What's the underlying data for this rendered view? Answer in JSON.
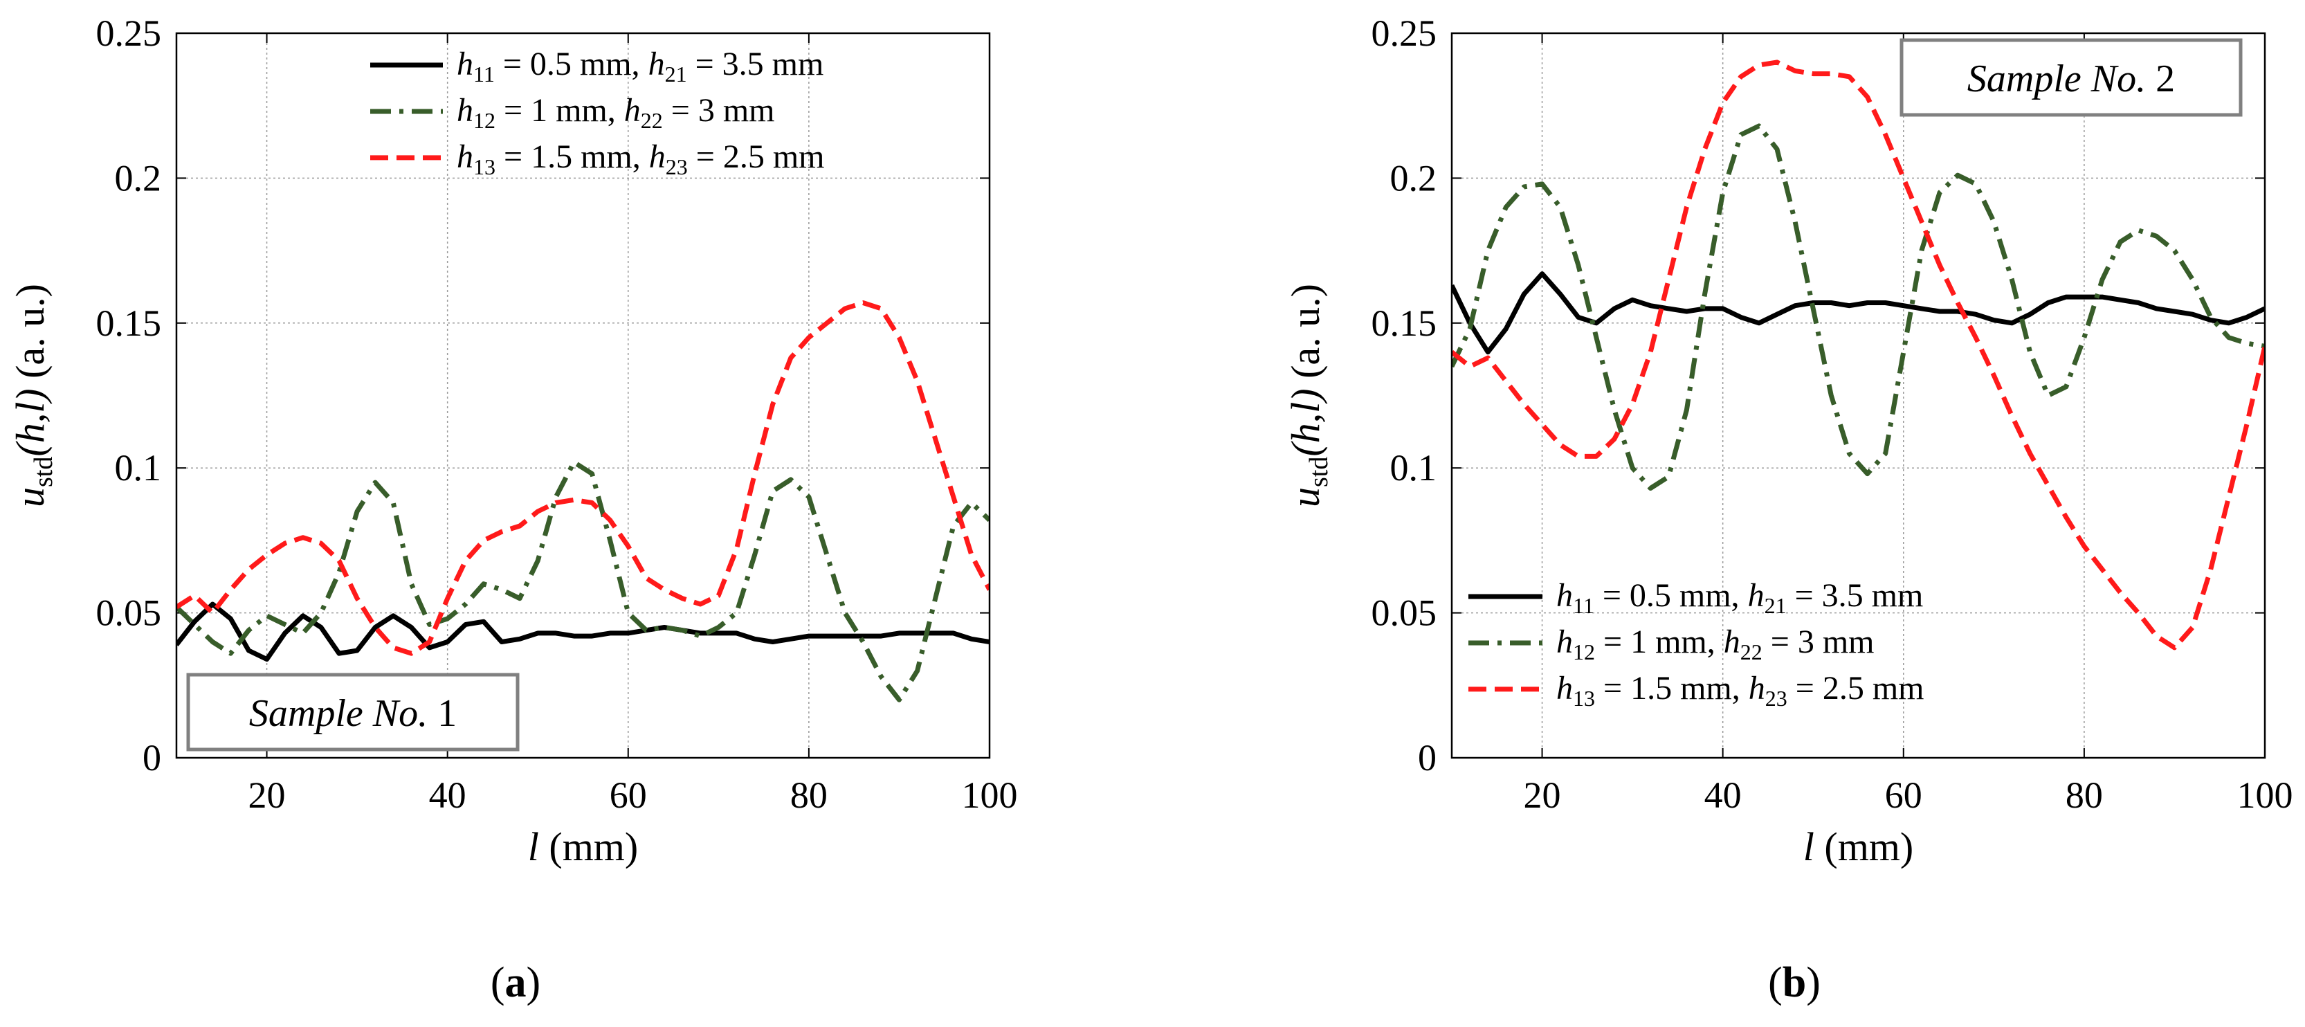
{
  "chart_data": [
    {
      "type": "line",
      "panel_label": "a",
      "title": "",
      "xlabel": "(mm)",
      "xlabel_symbol": "l",
      "ylabel": "(a. u.)",
      "ylabel_symbol": "u",
      "ylabel_subscript": "std",
      "ylabel_args": "(h,l)",
      "xlim": [
        10,
        100
      ],
      "ylim": [
        0,
        0.25
      ],
      "xticks": [
        "20",
        "40",
        "60",
        "80",
        "100"
      ],
      "xtick_values": [
        20,
        40,
        60,
        80,
        100
      ],
      "yticks": [
        "0",
        "0.05",
        "0.1",
        "0.15",
        "0.2",
        "0.25"
      ],
      "ytick_values": [
        0,
        0.05,
        0.1,
        0.15,
        0.2,
        0.25
      ],
      "grid": true,
      "legend_position": "top-right",
      "annotation": {
        "text": "Sample No.",
        "number": "1",
        "position": "bottom-left"
      },
      "x": [
        10,
        12,
        14,
        16,
        18,
        20,
        22,
        24,
        26,
        28,
        30,
        32,
        34,
        36,
        38,
        40,
        42,
        44,
        46,
        48,
        50,
        52,
        54,
        56,
        58,
        60,
        62,
        64,
        66,
        68,
        70,
        72,
        74,
        76,
        78,
        80,
        82,
        84,
        86,
        88,
        90,
        92,
        94,
        96,
        98,
        100
      ],
      "series": [
        {
          "name": "h11 = 0.5 mm, h21 = 3.5 mm",
          "color": "#000000",
          "dash": "solid",
          "values": [
            0.039,
            0.047,
            0.053,
            0.048,
            0.037,
            0.034,
            0.043,
            0.049,
            0.045,
            0.036,
            0.037,
            0.045,
            0.049,
            0.045,
            0.038,
            0.04,
            0.046,
            0.047,
            0.04,
            0.041,
            0.043,
            0.043,
            0.042,
            0.042,
            0.043,
            0.043,
            0.044,
            0.045,
            0.044,
            0.043,
            0.043,
            0.043,
            0.041,
            0.04,
            0.041,
            0.042,
            0.042,
            0.042,
            0.042,
            0.042,
            0.043,
            0.043,
            0.043,
            0.043,
            0.041,
            0.04
          ]
        },
        {
          "name": "h12 = 1 mm, h22 = 3 mm",
          "color": "#385d2a",
          "dash": "dashdot",
          "values": [
            0.052,
            0.046,
            0.04,
            0.036,
            0.044,
            0.049,
            0.046,
            0.043,
            0.05,
            0.064,
            0.085,
            0.095,
            0.088,
            0.06,
            0.046,
            0.048,
            0.053,
            0.06,
            0.058,
            0.055,
            0.068,
            0.09,
            0.102,
            0.098,
            0.075,
            0.05,
            0.044,
            0.045,
            0.044,
            0.042,
            0.045,
            0.05,
            0.07,
            0.092,
            0.096,
            0.09,
            0.07,
            0.05,
            0.04,
            0.028,
            0.02,
            0.03,
            0.055,
            0.08,
            0.088,
            0.082
          ]
        },
        {
          "name": "h13 = 1.5 mm, h23 = 2.5 mm",
          "color": "#ff1a1a",
          "dash": "dashed",
          "values": [
            0.052,
            0.056,
            0.05,
            0.058,
            0.065,
            0.07,
            0.074,
            0.076,
            0.074,
            0.068,
            0.055,
            0.045,
            0.038,
            0.036,
            0.04,
            0.055,
            0.068,
            0.075,
            0.078,
            0.08,
            0.085,
            0.088,
            0.089,
            0.088,
            0.082,
            0.073,
            0.062,
            0.058,
            0.055,
            0.053,
            0.056,
            0.072,
            0.098,
            0.122,
            0.138,
            0.145,
            0.15,
            0.155,
            0.157,
            0.155,
            0.145,
            0.13,
            0.11,
            0.09,
            0.07,
            0.058
          ]
        }
      ],
      "legend": [
        {
          "h_first": "11",
          "h_first_value": "= 0.5 mm,",
          "h_second": "21",
          "h_second_value": "= 3.5 mm"
        },
        {
          "h_first": "12",
          "h_first_value": "= 1 mm,",
          "h_second": "22",
          "h_second_value": "= 3 mm"
        },
        {
          "h_first": "13",
          "h_first_value": "= 1.5 mm,",
          "h_second": "23",
          "h_second_value": "= 2.5 mm"
        }
      ]
    },
    {
      "type": "line",
      "panel_label": "b",
      "title": "",
      "xlabel": "(mm)",
      "xlabel_symbol": "l",
      "ylabel": "(a. u.)",
      "ylabel_symbol": "u",
      "ylabel_subscript": "std",
      "ylabel_args": "(h,l)",
      "xlim": [
        10,
        100
      ],
      "ylim": [
        0,
        0.25
      ],
      "xticks": [
        "20",
        "40",
        "60",
        "80",
        "100"
      ],
      "xtick_values": [
        20,
        40,
        60,
        80,
        100
      ],
      "yticks": [
        "0",
        "0.05",
        "0.1",
        "0.15",
        "0.2",
        "0.25"
      ],
      "ytick_values": [
        0,
        0.05,
        0.1,
        0.15,
        0.2,
        0.25
      ],
      "grid": true,
      "legend_position": "bottom-left",
      "annotation": {
        "text": "Sample No.",
        "number": "2",
        "position": "top-right"
      },
      "x": [
        10,
        12,
        14,
        16,
        18,
        20,
        22,
        24,
        26,
        28,
        30,
        32,
        34,
        36,
        38,
        40,
        42,
        44,
        46,
        48,
        50,
        52,
        54,
        56,
        58,
        60,
        62,
        64,
        66,
        68,
        70,
        72,
        74,
        76,
        78,
        80,
        82,
        84,
        86,
        88,
        90,
        92,
        94,
        96,
        98,
        100
      ],
      "series": [
        {
          "name": "h11 = 0.5 mm, h21 = 3.5 mm",
          "color": "#000000",
          "dash": "solid",
          "values": [
            0.163,
            0.15,
            0.14,
            0.148,
            0.16,
            0.167,
            0.16,
            0.152,
            0.15,
            0.155,
            0.158,
            0.156,
            0.155,
            0.154,
            0.155,
            0.155,
            0.152,
            0.15,
            0.153,
            0.156,
            0.157,
            0.157,
            0.156,
            0.157,
            0.157,
            0.156,
            0.155,
            0.154,
            0.154,
            0.153,
            0.151,
            0.15,
            0.153,
            0.157,
            0.159,
            0.159,
            0.159,
            0.158,
            0.157,
            0.155,
            0.154,
            0.153,
            0.151,
            0.15,
            0.152,
            0.155
          ]
        },
        {
          "name": "h12 = 1 mm, h22 = 3 mm",
          "color": "#385d2a",
          "dash": "dashdot",
          "values": [
            0.135,
            0.148,
            0.175,
            0.19,
            0.197,
            0.198,
            0.19,
            0.17,
            0.145,
            0.12,
            0.1,
            0.093,
            0.097,
            0.12,
            0.16,
            0.195,
            0.215,
            0.218,
            0.21,
            0.185,
            0.155,
            0.125,
            0.105,
            0.098,
            0.105,
            0.14,
            0.175,
            0.195,
            0.201,
            0.198,
            0.185,
            0.165,
            0.14,
            0.125,
            0.128,
            0.145,
            0.165,
            0.178,
            0.182,
            0.18,
            0.175,
            0.165,
            0.152,
            0.145,
            0.143,
            0.142
          ]
        },
        {
          "name": "h13 = 1.5 mm, h23 = 2.5 mm",
          "color": "#ff1a1a",
          "dash": "dashed",
          "values": [
            0.14,
            0.135,
            0.138,
            0.13,
            0.122,
            0.115,
            0.108,
            0.104,
            0.104,
            0.11,
            0.122,
            0.14,
            0.165,
            0.19,
            0.21,
            0.226,
            0.235,
            0.239,
            0.24,
            0.237,
            0.236,
            0.236,
            0.235,
            0.228,
            0.215,
            0.2,
            0.185,
            0.17,
            0.157,
            0.145,
            0.132,
            0.118,
            0.105,
            0.094,
            0.083,
            0.073,
            0.065,
            0.057,
            0.05,
            0.042,
            0.038,
            0.045,
            0.065,
            0.09,
            0.115,
            0.142
          ]
        }
      ],
      "legend": [
        {
          "h_first": "11",
          "h_first_value": "= 0.5 mm,",
          "h_second": "21",
          "h_second_value": "= 3.5 mm"
        },
        {
          "h_first": "12",
          "h_first_value": "= 1 mm,",
          "h_second": "22",
          "h_second_value": "= 3 mm"
        },
        {
          "h_first": "13",
          "h_first_value": "= 1.5 mm,",
          "h_second": "23",
          "h_second_value": "= 2.5 mm"
        }
      ]
    }
  ]
}
